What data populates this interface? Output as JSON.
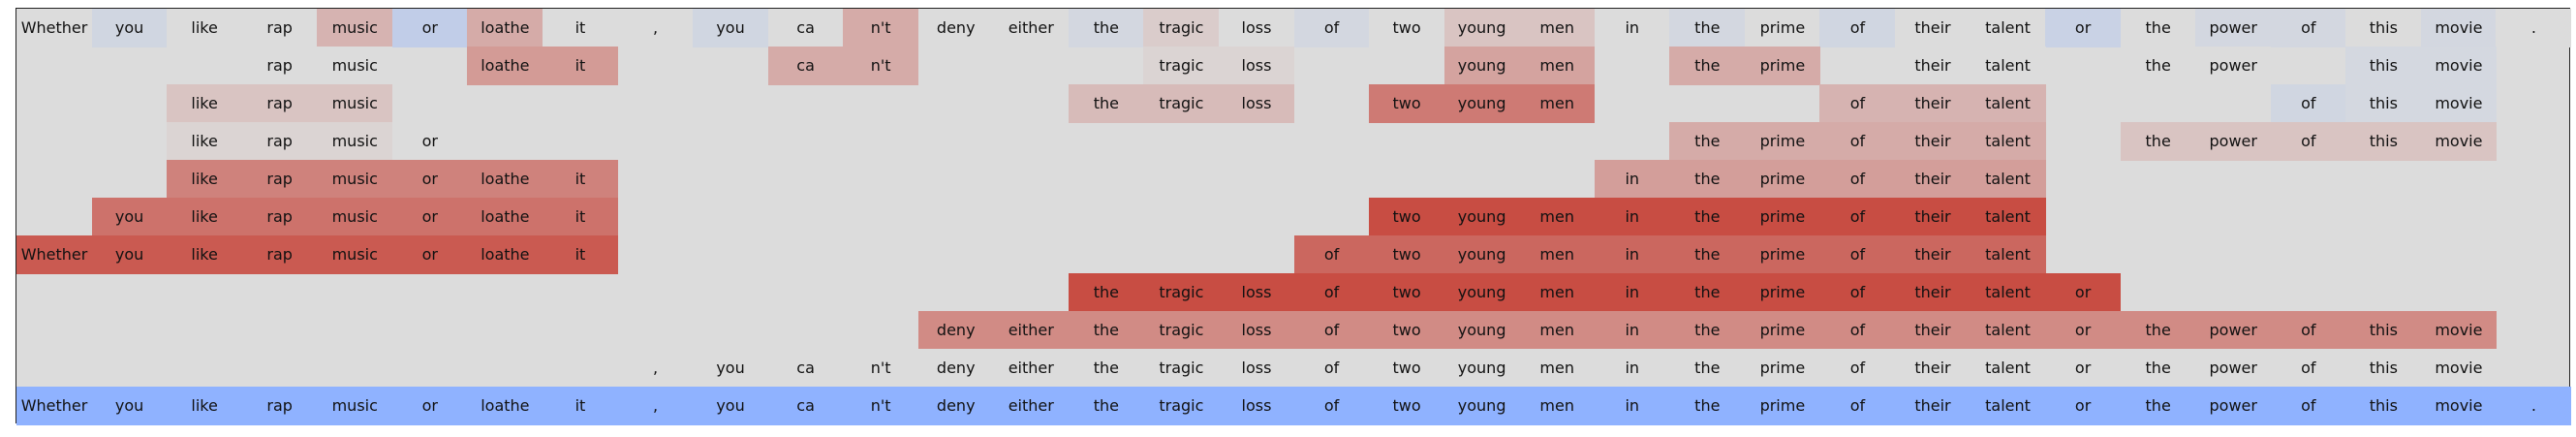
{
  "sentence": [
    "Whether",
    "you",
    "like",
    "rap",
    "music",
    "or",
    "loathe",
    "it",
    ",",
    "you",
    "ca",
    "n't",
    "deny",
    "either",
    "the",
    "tragic",
    "loss",
    "of",
    "two",
    "young",
    "men",
    "in",
    "the",
    "prime",
    "of",
    "their",
    "talent",
    "or",
    "the",
    "power",
    "of",
    "this",
    "movie",
    "."
  ],
  "rows": [
    {
      "tokens": [
        0,
        1,
        2,
        3,
        4,
        5,
        6,
        7,
        8,
        9,
        10,
        11,
        12,
        13,
        14,
        15,
        16,
        17,
        18,
        19,
        20,
        21,
        22,
        23,
        24,
        25,
        26,
        27,
        28,
        29,
        30,
        31,
        32,
        33
      ],
      "values": [
        0.0,
        -0.15,
        0.0,
        0.0,
        0.25,
        -0.35,
        0.3,
        0.0,
        0.0,
        -0.15,
        0.0,
        0.3,
        0.0,
        0.0,
        -0.12,
        0.1,
        0.0,
        -0.12,
        0.0,
        0.15,
        0.15,
        0.0,
        -0.12,
        0.0,
        -0.15,
        0.0,
        0.0,
        -0.25,
        0.0,
        -0.12,
        -0.12,
        0.0,
        -0.12,
        0.0
      ]
    },
    {
      "tokens": [
        3,
        4,
        6,
        7,
        10,
        11,
        15,
        16,
        19,
        20,
        22,
        23,
        25,
        26,
        28,
        29,
        31,
        32
      ],
      "values": [
        0.0,
        0.0,
        0.4,
        0.4,
        0.3,
        0.3,
        0.05,
        0.05,
        0.35,
        0.35,
        0.3,
        0.3,
        0.0,
        0.0,
        0.0,
        0.0,
        -0.1,
        -0.1
      ]
    },
    {
      "tokens": [
        2,
        3,
        4,
        14,
        15,
        16,
        18,
        19,
        20,
        24,
        25,
        26,
        30,
        31,
        32
      ],
      "values": [
        0.15,
        0.15,
        0.15,
        0.2,
        0.2,
        0.2,
        0.6,
        0.6,
        0.6,
        0.25,
        0.25,
        0.25,
        -0.15,
        -0.1,
        -0.1
      ]
    },
    {
      "tokens": [
        2,
        3,
        4,
        5,
        22,
        23,
        24,
        25,
        26,
        28,
        29,
        30,
        31,
        32
      ],
      "values": [
        0.05,
        0.05,
        0.05,
        0.0,
        0.3,
        0.3,
        0.3,
        0.3,
        0.3,
        0.15,
        0.15,
        0.15,
        0.15,
        0.15
      ]
    },
    {
      "tokens": [
        2,
        3,
        4,
        5,
        6,
        7,
        21,
        22,
        23,
        24,
        25,
        26
      ],
      "values": [
        0.55,
        0.55,
        0.55,
        0.55,
        0.55,
        0.55,
        0.38,
        0.38,
        0.38,
        0.38,
        0.38,
        0.38
      ]
    },
    {
      "tokens": [
        1,
        2,
        3,
        4,
        5,
        6,
        7,
        18,
        19,
        20,
        21,
        22,
        23,
        24,
        25,
        26
      ],
      "values": [
        0.65,
        0.65,
        0.65,
        0.65,
        0.65,
        0.65,
        0.65,
        0.88,
        0.88,
        0.88,
        0.88,
        0.88,
        0.88,
        0.88,
        0.88,
        0.88
      ]
    },
    {
      "tokens": [
        0,
        1,
        2,
        3,
        4,
        5,
        6,
        7,
        17,
        18,
        19,
        20,
        21,
        22,
        23,
        24,
        25,
        26
      ],
      "values": [
        0.8,
        0.8,
        0.8,
        0.8,
        0.8,
        0.8,
        0.8,
        0.8,
        0.72,
        0.72,
        0.72,
        0.72,
        0.72,
        0.72,
        0.72,
        0.72,
        0.72,
        0.72
      ]
    },
    {
      "tokens": [
        14,
        15,
        16,
        17,
        18,
        19,
        20,
        21,
        22,
        23,
        24,
        25,
        26,
        27
      ],
      "values": [
        0.88,
        0.88,
        0.88,
        0.88,
        0.88,
        0.88,
        0.88,
        0.88,
        0.88,
        0.88,
        0.88,
        0.88,
        0.88,
        0.88
      ]
    },
    {
      "tokens": [
        12,
        13,
        14,
        15,
        16,
        17,
        18,
        19,
        20,
        21,
        22,
        23,
        24,
        25,
        26,
        27,
        28,
        29,
        30,
        31,
        32
      ],
      "values": [
        0.5,
        0.5,
        0.5,
        0.5,
        0.5,
        0.5,
        0.5,
        0.5,
        0.5,
        0.5,
        0.5,
        0.5,
        0.5,
        0.5,
        0.5,
        0.5,
        0.5,
        0.5,
        0.5,
        0.5,
        0.5
      ]
    },
    {
      "tokens": [
        8,
        9,
        10,
        11,
        12,
        13,
        14,
        15,
        16,
        17,
        18,
        19,
        20,
        21,
        22,
        23,
        24,
        25,
        26,
        27,
        28,
        29,
        30,
        31,
        32
      ],
      "values": [
        0,
        0,
        0,
        0,
        0,
        0,
        0,
        0,
        0,
        0,
        0,
        0,
        0,
        0,
        0,
        0,
        0,
        0,
        0,
        0,
        0,
        0,
        0,
        0,
        0
      ]
    },
    {
      "tokens": [
        0,
        1,
        2,
        3,
        4,
        5,
        6,
        7,
        8,
        9,
        10,
        11,
        12,
        13,
        14,
        15,
        16,
        17,
        18,
        19,
        20,
        21,
        22,
        23,
        24,
        25,
        26,
        27,
        28,
        29,
        30,
        31,
        32,
        33
      ],
      "values": [
        -1,
        -1,
        -1,
        -1,
        -1,
        -1,
        -1,
        -1,
        -1,
        -1,
        -1,
        -1,
        -1,
        -1,
        -1,
        -1,
        -1,
        -1,
        -1,
        -1,
        -1,
        -1,
        -1,
        -1,
        -1,
        -1,
        -1,
        -1,
        -1,
        -1,
        -1,
        -1,
        -1,
        -1
      ]
    }
  ],
  "colormap": {
    "negative": "#8fb2ff",
    "neutral": "#dcdcdc",
    "positive": "#c5392e"
  }
}
